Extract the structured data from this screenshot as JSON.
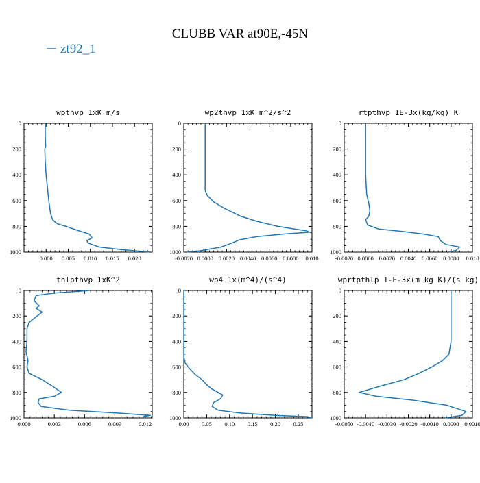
{
  "page": {
    "title": "CLUBB VAR at90E,-45N",
    "legend": {
      "label": "zt92_1",
      "color": "#1f77b4",
      "placement": "top-left"
    }
  },
  "chart_data": [
    {
      "type": "line",
      "title": "wpthvp   1xK m/s",
      "xlim": [
        -0.005,
        0.024
      ],
      "ylim": [
        1000,
        0
      ],
      "xticks": [
        0.0,
        0.005,
        0.01,
        0.015,
        0.02
      ],
      "xtick_labels": [
        "0.000",
        "0.005",
        "0.010",
        "0.015",
        "0.020"
      ],
      "yticks": [
        0,
        200,
        400,
        600,
        800,
        1000
      ],
      "ytick_labels": [
        "0",
        "200",
        "400",
        "600",
        "800",
        "1000"
      ],
      "series": [
        {
          "color": "#1f77b4",
          "x": [
            -0.0002,
            -0.0002,
            -0.0001,
            -0.0003,
            -0.0002,
            0.0,
            0.0003,
            0.0006,
            0.001,
            0.0015,
            0.0025,
            0.0045,
            0.007,
            0.0098,
            0.0104,
            0.0092,
            0.0095,
            0.012,
            0.017,
            0.022,
            0.0235
          ],
          "y": [
            0,
            100,
            180,
            200,
            300,
            400,
            500,
            600,
            700,
            750,
            780,
            800,
            830,
            860,
            890,
            910,
            930,
            960,
            980,
            995,
            1000
          ]
        }
      ]
    },
    {
      "type": "line",
      "title": "wp2thvp   1xK m^2/s^2",
      "xlim": [
        -0.002,
        0.01
      ],
      "ylim": [
        1000,
        0
      ],
      "xticks": [
        -0.002,
        0.0,
        0.002,
        0.004,
        0.006,
        0.008,
        0.01
      ],
      "xtick_labels": [
        "-0.0020",
        "0.0000",
        "0.0020",
        "0.0040",
        "0.0060",
        "0.0080",
        "0.010"
      ],
      "yticks": [
        0,
        200,
        400,
        600,
        800,
        1000
      ],
      "ytick_labels": [
        "0",
        "200",
        "400",
        "600",
        "800",
        "1000"
      ],
      "series": [
        {
          "color": "#1f77b4",
          "x": [
            0.0,
            0.0,
            0.0,
            0.0,
            0.0002,
            0.0008,
            0.0018,
            0.0033,
            0.0048,
            0.0068,
            0.0095,
            0.0098,
            0.0072,
            0.0048,
            0.0032,
            0.0025,
            0.0015,
            -0.0005,
            -0.0018
          ],
          "y": [
            0,
            200,
            400,
            520,
            560,
            610,
            660,
            720,
            760,
            800,
            835,
            845,
            860,
            880,
            905,
            930,
            960,
            990,
            1000
          ]
        }
      ]
    },
    {
      "type": "line",
      "title": "rtpthvp   1E-3x(kg/kg) K",
      "xlim": [
        -0.002,
        0.01
      ],
      "ylim": [
        1000,
        0
      ],
      "xticks": [
        -0.002,
        0.0,
        0.002,
        0.004,
        0.006,
        0.008,
        0.01
      ],
      "xtick_labels": [
        "-0.0020",
        "0.0000",
        "0.0020",
        "0.0040",
        "0.0060",
        "0.0080",
        "0.010"
      ],
      "yticks": [
        0,
        200,
        400,
        600,
        800,
        1000
      ],
      "ytick_labels": [
        "0",
        "200",
        "400",
        "600",
        "800",
        "1000"
      ],
      "series": [
        {
          "color": "#1f77b4",
          "x": [
            0.0,
            0.0,
            0.0,
            0.0001,
            0.0003,
            0.0004,
            0.0003,
            0.0,
            0.0002,
            0.0012,
            0.0035,
            0.0055,
            0.0068,
            0.007,
            0.0075,
            0.0088,
            0.0085,
            0.0078
          ],
          "y": [
            0,
            200,
            400,
            550,
            620,
            680,
            720,
            750,
            790,
            820,
            840,
            860,
            880,
            910,
            940,
            960,
            985,
            1000
          ]
        }
      ]
    },
    {
      "type": "line",
      "title": "thlpthvp   1xK^2",
      "xlim": [
        0.0,
        0.0127
      ],
      "ylim": [
        1000,
        0
      ],
      "xticks": [
        0.0,
        0.003,
        0.006,
        0.009,
        0.012
      ],
      "xtick_labels": [
        "0.000",
        "0.003",
        "0.006",
        "0.009",
        "0.012"
      ],
      "yticks": [
        0,
        200,
        400,
        600,
        800,
        1000
      ],
      "ytick_labels": [
        "0",
        "200",
        "400",
        "600",
        "800",
        "1000"
      ],
      "series": [
        {
          "color": "#1f77b4",
          "x": [
            0.0065,
            0.003,
            0.0012,
            0.001,
            0.0015,
            0.0012,
            0.0018,
            0.0013,
            0.0005,
            0.0003,
            0.0003,
            0.0002,
            0.0004,
            0.0003,
            0.0005,
            0.0018,
            0.0028,
            0.0037,
            0.003,
            0.0015,
            0.0014,
            0.0017,
            0.0045,
            0.009,
            0.0125,
            0.0118
          ],
          "y": [
            0,
            20,
            40,
            80,
            120,
            140,
            170,
            200,
            250,
            300,
            400,
            480,
            550,
            600,
            650,
            700,
            750,
            800,
            830,
            850,
            880,
            910,
            940,
            960,
            980,
            990
          ]
        }
      ]
    },
    {
      "type": "line",
      "title": "wp4   1x(m^4)/(s^4)",
      "xlim": [
        0.0,
        0.28
      ],
      "ylim": [
        1000,
        0
      ],
      "xticks": [
        0.0,
        0.05,
        0.1,
        0.15,
        0.2,
        0.25
      ],
      "xtick_labels": [
        "0.00",
        "0.05",
        "0.10",
        "0.15",
        "0.20",
        "0.25"
      ],
      "yticks": [
        0,
        200,
        400,
        600,
        800,
        1000
      ],
      "ytick_labels": [
        "0",
        "200",
        "400",
        "600",
        "800",
        "1000"
      ],
      "series": [
        {
          "color": "#1f77b4",
          "x": [
            0.0,
            0.0,
            0.0,
            0.0,
            0.003,
            0.012,
            0.025,
            0.04,
            0.05,
            0.06,
            0.075,
            0.085,
            0.08,
            0.065,
            0.062,
            0.075,
            0.12,
            0.2,
            0.27,
            0.28
          ],
          "y": [
            0,
            200,
            400,
            520,
            570,
            610,
            660,
            700,
            740,
            770,
            800,
            820,
            850,
            880,
            910,
            940,
            960,
            980,
            990,
            1000
          ]
        }
      ]
    },
    {
      "type": "line",
      "title": "wprtpthlp   1-E-3x(m kg K)/(s kg)",
      "xlim": [
        -0.005,
        0.001
      ],
      "ylim": [
        1000,
        0
      ],
      "xticks": [
        -0.005,
        -0.004,
        -0.003,
        -0.002,
        -0.001,
        0.0,
        0.001
      ],
      "xtick_labels": [
        "-0.0050",
        "-0.0040",
        "-0.0030",
        "-0.0020",
        "-0.0010",
        "0.0000",
        "0.0010"
      ],
      "yticks": [
        0,
        200,
        400,
        600,
        800,
        1000
      ],
      "ytick_labels": [
        "0",
        "200",
        "400",
        "600",
        "800",
        "1000"
      ],
      "series": [
        {
          "color": "#1f77b4",
          "x": [
            0.0,
            0.0,
            0.0,
            -0.0001,
            -0.0004,
            -0.0009,
            -0.0015,
            -0.0022,
            -0.0033,
            -0.0043,
            -0.0035,
            -0.0018,
            -0.0002,
            0.0007,
            0.0005,
            -0.0003
          ],
          "y": [
            0,
            200,
            400,
            500,
            550,
            600,
            650,
            700,
            750,
            800,
            830,
            860,
            900,
            950,
            980,
            1000
          ]
        }
      ]
    }
  ]
}
